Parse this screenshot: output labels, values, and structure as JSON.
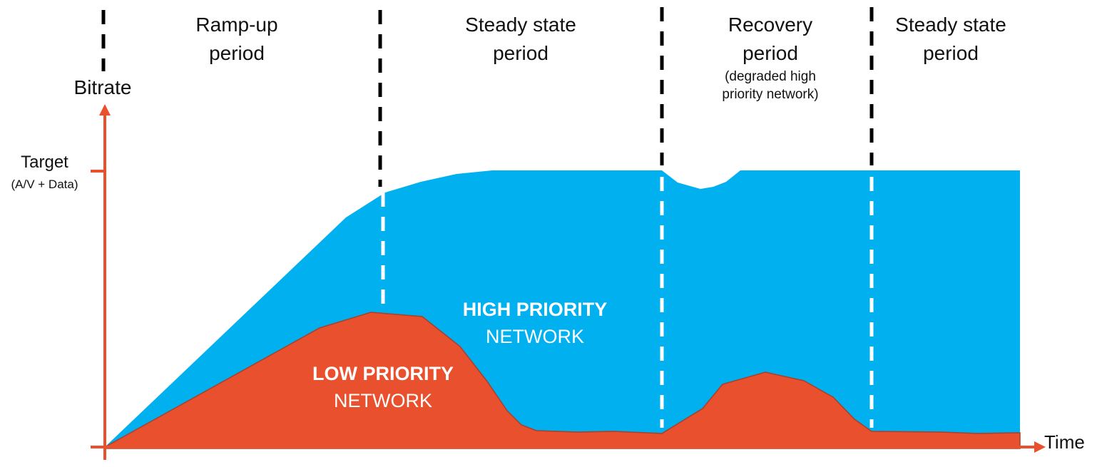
{
  "axes": {
    "y_label": "Bitrate",
    "x_label": "Time",
    "target_label": "Target",
    "target_sublabel": "(A/V + Data)"
  },
  "periods": [
    {
      "title": "Ramp-up",
      "subtitle": "period"
    },
    {
      "title": "Steady state",
      "subtitle": "period"
    },
    {
      "title": "Recovery",
      "subtitle": "period",
      "note_line1": "(degraded high",
      "note_line2": "priority network)"
    },
    {
      "title": "Steady state",
      "subtitle": "period"
    }
  ],
  "areas": {
    "high": {
      "label_bold": "HIGH PRIORITY",
      "label": "NETWORK",
      "color": "#00B0EF"
    },
    "low": {
      "label_bold": "LOW PRIORITY",
      "label": "NETWORK",
      "color": "#E8502E"
    }
  },
  "colors": {
    "axis": "#E8502E",
    "divider_top": "#000000",
    "divider_inside": "#FFFFFF"
  }
}
